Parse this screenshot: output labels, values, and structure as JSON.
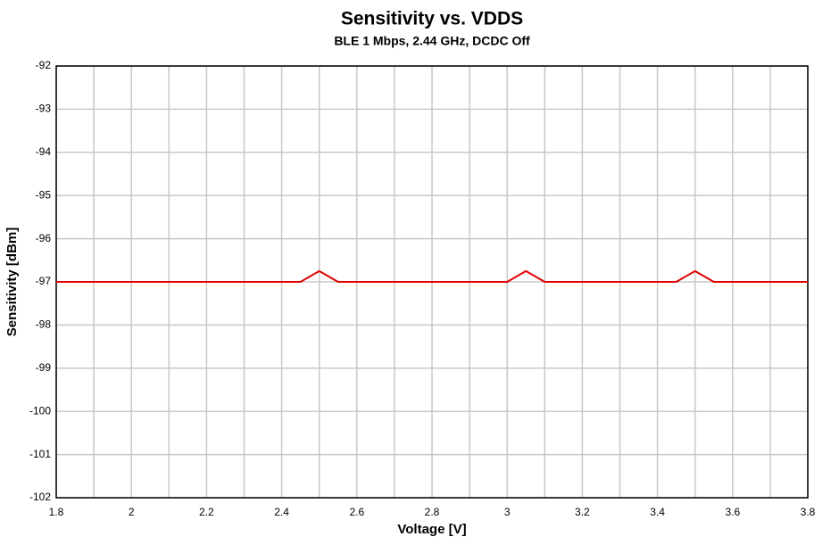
{
  "chart_data": {
    "type": "line",
    "title": "Sensitivity vs. VDDS",
    "subtitle": "BLE 1 Mbps, 2.44 GHz, DCDC Off",
    "x_label": "Voltage [V]",
    "y_label": "Sensitivity [dBm]",
    "x": [
      1.8,
      2.45,
      2.5,
      2.55,
      3.0,
      3.05,
      3.1,
      3.45,
      3.5,
      3.55,
      3.8
    ],
    "series": [
      {
        "color": "#e00000",
        "values": [
          -97,
          -97,
          -96.75,
          -97,
          -97,
          -96.75,
          -97,
          -97,
          -96.75,
          -97,
          -97
        ]
      }
    ],
    "xlim": [
      1.8,
      3.8
    ],
    "ylim": [
      -102,
      -92
    ],
    "xticks": [
      1.8,
      2,
      2.2,
      2.4,
      2.6,
      2.8,
      3,
      3.2,
      3.4,
      3.6,
      3.8
    ],
    "xminorticks": [
      1.9,
      2.1,
      2.3,
      2.5,
      2.7,
      2.9,
      3.1,
      3.3,
      3.5,
      3.7
    ],
    "yticks": [
      -102,
      -101,
      -100,
      -99,
      -98,
      -97,
      -96,
      -95,
      -94,
      -93,
      -92
    ],
    "grid": true
  }
}
